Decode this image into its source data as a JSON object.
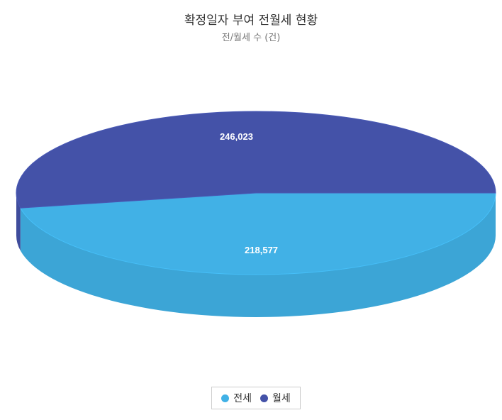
{
  "chart_data": {
    "type": "pie",
    "title": "확정일자 부여 전월세 현황",
    "subtitle": "전/월세 수 (건)",
    "categories": [
      "전세",
      "월세"
    ],
    "values": [
      218577,
      246023
    ],
    "data_labels": [
      "218,577",
      "246,023"
    ],
    "colors": [
      "#41b1e6",
      "#4452a8"
    ],
    "legend_position": "bottom-center",
    "style": "3d"
  }
}
